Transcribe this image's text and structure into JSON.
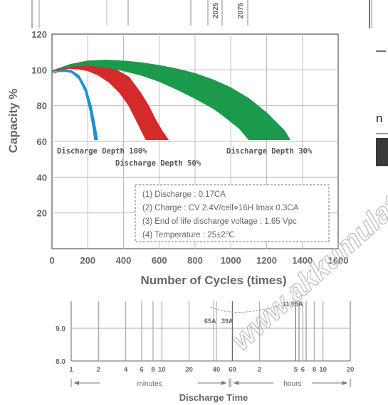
{
  "top_fragments": {
    "vertical_labels": [
      "2025",
      "2075"
    ],
    "right_letter": "n"
  },
  "watermark": "www.akkumulator",
  "chart_data": [
    {
      "type": "area",
      "ylabel": "Capacity %",
      "xlabel": "Number of Cycles (times)",
      "xlim": [
        0,
        1600
      ],
      "ylim": [
        0,
        120
      ],
      "x_ticks": [
        0,
        200,
        400,
        600,
        800,
        1000,
        1200,
        1400,
        1600
      ],
      "x_tick_labels": [
        "0",
        "200",
        "400",
        "600",
        "800",
        "1000",
        "1200",
        "1400",
        "1600"
      ],
      "y_ticks": [
        20,
        40,
        60,
        80,
        100,
        120
      ],
      "y_tick_labels": [
        "20",
        "40",
        "60",
        "80",
        "100",
        "120"
      ],
      "series": [
        {
          "name": "Discharge Depth 100%",
          "color": "#1e90d6",
          "upper": [
            [
              0,
              98
            ],
            [
              40,
              99.5
            ],
            [
              80,
              100
            ],
            [
              110,
              99.5
            ],
            [
              150,
              97
            ],
            [
              190,
              90
            ],
            [
              220,
              80
            ],
            [
              240,
              70
            ],
            [
              255,
              61
            ]
          ],
          "lower": [
            [
              0,
              98
            ],
            [
              40,
              99
            ],
            [
              80,
              99
            ],
            [
              110,
              98.5
            ],
            [
              150,
              95
            ],
            [
              185,
              88
            ],
            [
              210,
              78
            ],
            [
              228,
              68
            ],
            [
              238,
              61
            ]
          ]
        },
        {
          "name": "Discharge Depth 50%",
          "color": "#d42a2a",
          "upper": [
            [
              0,
              99
            ],
            [
              50,
              100.5
            ],
            [
              120,
              102
            ],
            [
              200,
              102.5
            ],
            [
              280,
              102
            ],
            [
              360,
              100
            ],
            [
              430,
              96
            ],
            [
              490,
              88
            ],
            [
              540,
              80
            ],
            [
              580,
              72
            ],
            [
              615,
              66
            ],
            [
              650,
              61
            ]
          ],
          "lower": [
            [
              0,
              99
            ],
            [
              50,
              100
            ],
            [
              100,
              100.8
            ],
            [
              150,
              100.5
            ],
            [
              200,
              99.5
            ],
            [
              260,
              97
            ],
            [
              320,
              93
            ],
            [
              380,
              87
            ],
            [
              430,
              80
            ],
            [
              470,
              72
            ],
            [
              500,
              66
            ],
            [
              525,
              61
            ]
          ]
        },
        {
          "name": "Discharge Depth 30%",
          "color": "#1a9a4a",
          "upper": [
            [
              0,
              99.5
            ],
            [
              100,
              103
            ],
            [
              200,
              105
            ],
            [
              300,
              105.5
            ],
            [
              400,
              105
            ],
            [
              500,
              104
            ],
            [
              600,
              102.5
            ],
            [
              700,
              100.5
            ],
            [
              800,
              98
            ],
            [
              900,
              94.5
            ],
            [
              1000,
              90
            ],
            [
              1100,
              84
            ],
            [
              1200,
              76
            ],
            [
              1260,
              70
            ],
            [
              1300,
              66
            ],
            [
              1330,
              61
            ]
          ],
          "lower": [
            [
              0,
              99.5
            ],
            [
              100,
              102
            ],
            [
              200,
              102.5
            ],
            [
              300,
              101.5
            ],
            [
              400,
              99.5
            ],
            [
              500,
              97
            ],
            [
              600,
              93.5
            ],
            [
              700,
              89
            ],
            [
              800,
              84
            ],
            [
              900,
              78.5
            ],
            [
              950,
              75
            ],
            [
              1000,
              71
            ],
            [
              1050,
              67
            ],
            [
              1100,
              61
            ]
          ]
        }
      ],
      "annotations": [
        "Discharge Depth 100%",
        "Discharge Depth 50%",
        "Discharge Depth 30%"
      ],
      "notes": [
        "(1) Discharge : 0.17CA",
        "(2) Charge : CV 2.4V/cell⋄16H Imax 0.3CA",
        "(3) End of life discharge voltage : 1.65 Vpc",
        "(4) Temperature : 25±2℃"
      ]
    },
    {
      "type": "line",
      "xlabel": "Discharge Time",
      "y_ticks": [
        8.0,
        9.0
      ],
      "y_tick_labels": [
        "8.0",
        "9.0"
      ],
      "x_tick_labels": [
        "1",
        "2",
        "4",
        "6",
        "8",
        "10",
        "20",
        "40",
        "60",
        "2",
        "5",
        "6",
        "8",
        "10",
        "20"
      ],
      "x_units": [
        "minutes",
        "hours"
      ],
      "current_labels": [
        "65A",
        "39A",
        "11.05A"
      ]
    }
  ]
}
